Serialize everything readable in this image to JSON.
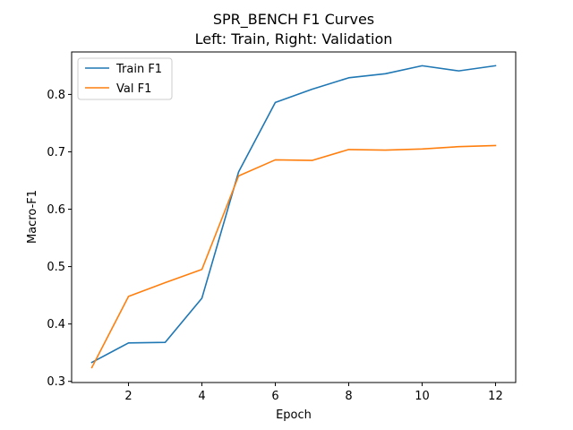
{
  "chart_data": {
    "type": "line",
    "title": "SPR_BENCH F1 Curves",
    "subtitle": "Left: Train, Right: Validation",
    "xlabel": "Epoch",
    "ylabel": "Macro-F1",
    "x": [
      1,
      2,
      3,
      4,
      5,
      6,
      7,
      8,
      9,
      10,
      11,
      12
    ],
    "xticks": [
      2,
      4,
      6,
      8,
      10,
      12
    ],
    "yticks": [
      0.3,
      0.4,
      0.5,
      0.6,
      0.7,
      0.8
    ],
    "xlim": [
      0.45,
      12.55
    ],
    "ylim": [
      0.298,
      0.874
    ],
    "grid": false,
    "legend_position": "top-left",
    "series": [
      {
        "name": "Train F1",
        "color": "#1f77b4",
        "values": [
          0.333,
          0.367,
          0.368,
          0.445,
          0.665,
          0.786,
          0.809,
          0.829,
          0.836,
          0.85,
          0.841,
          0.85
        ]
      },
      {
        "name": "Val F1",
        "color": "#ff7f0e",
        "values": [
          0.324,
          0.448,
          0.472,
          0.495,
          0.658,
          0.686,
          0.685,
          0.704,
          0.703,
          0.705,
          0.709,
          0.711
        ]
      }
    ]
  }
}
